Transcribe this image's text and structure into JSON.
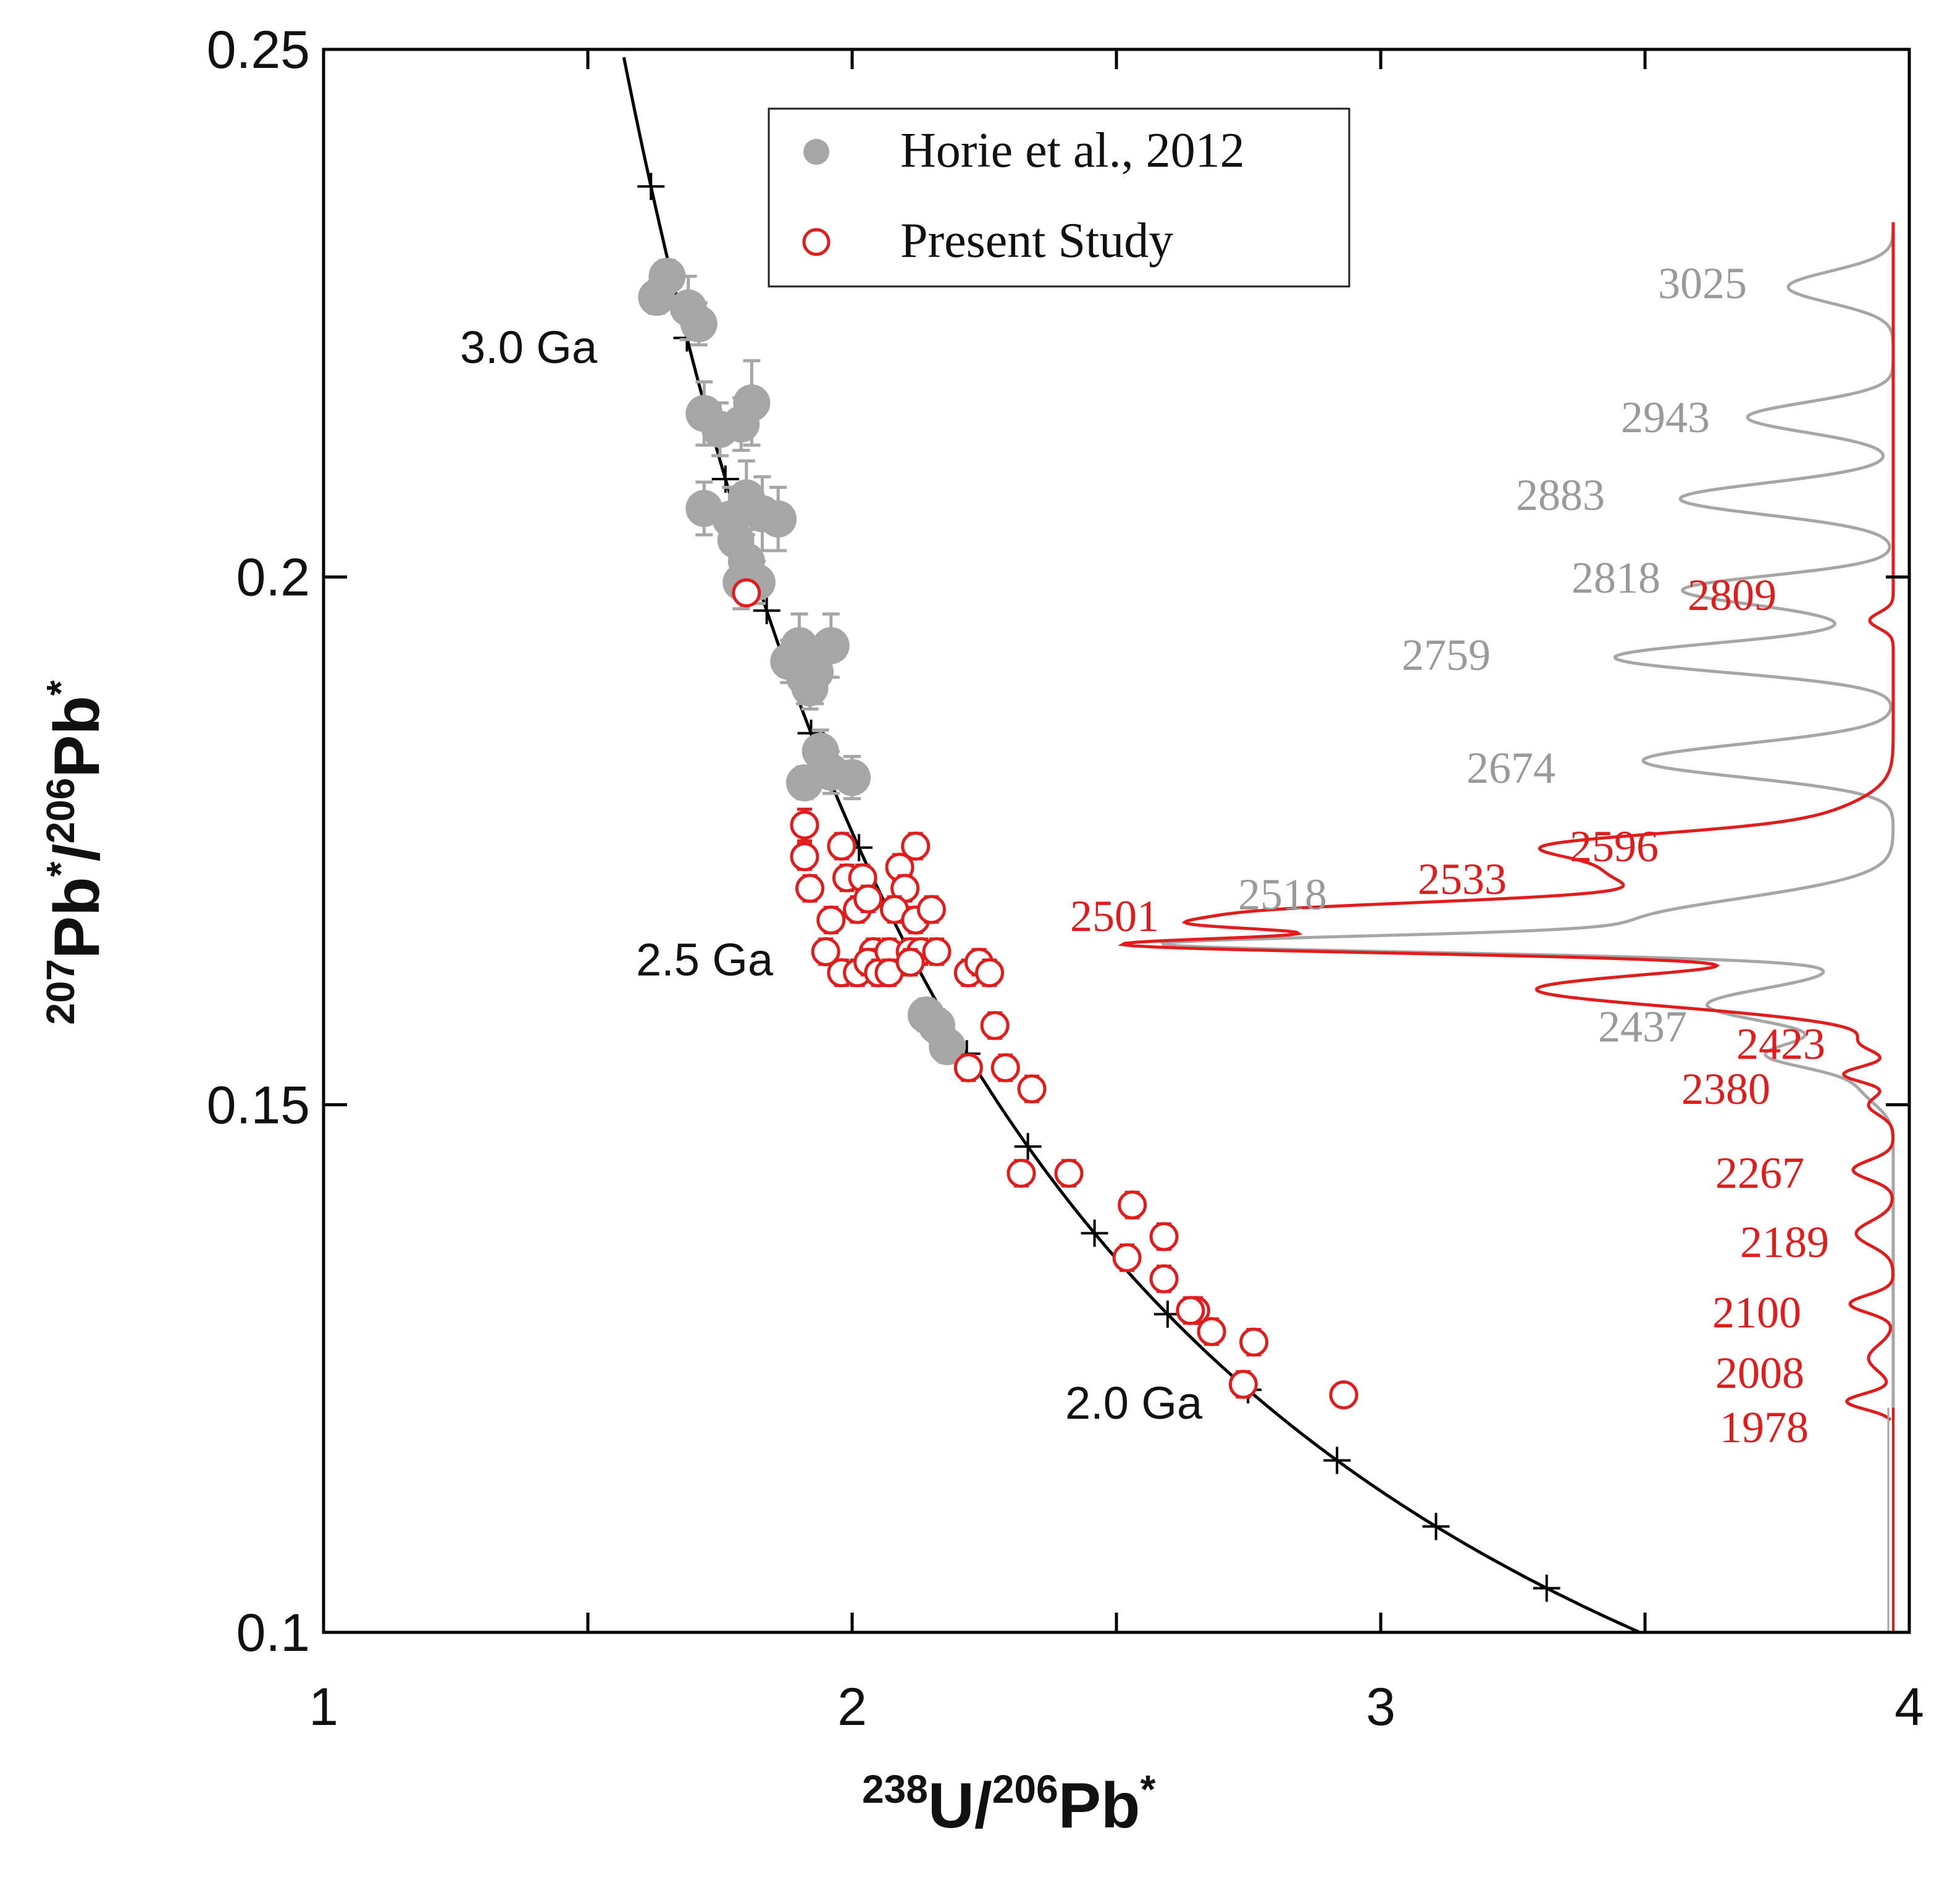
{
  "chart_data": {
    "type": "scatter",
    "title": "",
    "x_axis": {
      "label_parts": {
        "sup1": "238",
        "base1": "U/",
        "sup2": "206",
        "base2": "Pb",
        "sup3": "*"
      },
      "range": [
        1,
        4
      ],
      "ticks": [
        1,
        2,
        3,
        4
      ],
      "tick_labels": [
        "1",
        "2",
        "3",
        "4"
      ]
    },
    "y_axis": {
      "label_parts": {
        "sup1": "207",
        "base1": "Pb",
        "sup2": "*",
        "base2": "/",
        "sup3": "206",
        "base3": "Pb",
        "sup4": "*"
      },
      "range": [
        0.1,
        0.25
      ],
      "ticks": [
        0.1,
        0.15,
        0.2,
        0.25
      ],
      "tick_labels": [
        "0.1",
        "0.15",
        "0.2",
        "0.25"
      ]
    },
    "legend": {
      "placement": "top-center",
      "entries": [
        {
          "label": "Horie et al., 2012",
          "marker": "filled-circle",
          "color": "#a6a6a6"
        },
        {
          "label": "Present Study",
          "marker": "open-circle",
          "color": "#e21b1b"
        }
      ]
    },
    "concordia": {
      "type": "line",
      "color": "#000000",
      "age_marks_Ma": [
        3200,
        3100,
        3000,
        2900,
        2800,
        2700,
        2600,
        2500,
        2400,
        2300,
        2200,
        2100,
        2000,
        1900,
        1800,
        1700,
        1600
      ],
      "age_labels": [
        {
          "text": "3.0 Ga",
          "age_Ma": 3000
        },
        {
          "text": "2.5 Ga",
          "age_Ma": 2500
        },
        {
          "text": "2.0 Ga",
          "age_Ma": 2000
        }
      ]
    },
    "series": [
      {
        "name": "Horie et al., 2012",
        "color": "#a6a6a6",
        "marker": "filled-circle",
        "points": [
          [
            1.65,
            0.2285,
            0.0015
          ],
          [
            1.63,
            0.2265,
            0.0015
          ],
          [
            1.69,
            0.2255,
            0.003
          ],
          [
            1.71,
            0.224,
            0.002
          ],
          [
            1.72,
            0.2155,
            0.003
          ],
          [
            1.75,
            0.214,
            0.0025
          ],
          [
            1.79,
            0.2145,
            0.0025
          ],
          [
            1.81,
            0.2165,
            0.004
          ],
          [
            1.72,
            0.2065,
            0.0025
          ],
          [
            1.77,
            0.2055,
            0.003
          ],
          [
            1.8,
            0.2075,
            0.0035
          ],
          [
            1.83,
            0.206,
            0.0035
          ],
          [
            1.78,
            0.2035,
            0.0035
          ],
          [
            1.8,
            0.2015,
            0.003
          ],
          [
            1.86,
            0.2055,
            0.003
          ],
          [
            1.79,
            0.1995,
            0.0025
          ],
          [
            1.82,
            0.1995,
            0.002
          ],
          [
            1.88,
            0.192,
            0.002
          ],
          [
            1.91,
            0.1905,
            0.0025
          ],
          [
            1.93,
            0.191,
            0.003
          ],
          [
            1.9,
            0.1935,
            0.003
          ],
          [
            1.96,
            0.1935,
            0.003
          ],
          [
            1.92,
            0.1895,
            0.002
          ],
          [
            1.94,
            0.1835,
            0.002
          ],
          [
            1.96,
            0.1815,
            0.002
          ],
          [
            1.91,
            0.1805,
            0.0015
          ],
          [
            2.0,
            0.181,
            0.002
          ],
          [
            2.14,
            0.1585,
            0.0015
          ],
          [
            2.16,
            0.1575,
            0.0015
          ],
          [
            2.18,
            0.1555,
            0.0015
          ]
        ]
      },
      {
        "name": "Present Study",
        "color": "#e21b1b",
        "marker": "open-circle",
        "points": [
          [
            1.8,
            0.1985,
            0.0008
          ],
          [
            1.91,
            0.1765,
            0.0015
          ],
          [
            1.91,
            0.1735,
            0.0012
          ],
          [
            1.92,
            0.1705,
            0.0012
          ],
          [
            1.96,
            0.1675,
            0.0012
          ],
          [
            1.98,
            0.1745,
            0.0012
          ],
          [
            1.99,
            0.1715,
            0.0012
          ],
          [
            2.01,
            0.1685,
            0.0012
          ],
          [
            2.02,
            0.1715,
            0.0012
          ],
          [
            2.03,
            0.1695,
            0.0012
          ],
          [
            2.04,
            0.1645,
            0.0012
          ],
          [
            1.95,
            0.1645,
            0.0012
          ],
          [
            1.98,
            0.1625,
            0.0012
          ],
          [
            2.01,
            0.1625,
            0.0012
          ],
          [
            2.03,
            0.1635,
            0.0012
          ],
          [
            2.05,
            0.1625,
            0.0012
          ],
          [
            2.07,
            0.1645,
            0.0012
          ],
          [
            2.09,
            0.1725,
            0.0012
          ],
          [
            2.1,
            0.1705,
            0.0012
          ],
          [
            2.12,
            0.1745,
            0.0012
          ],
          [
            2.08,
            0.1685,
            0.0012
          ],
          [
            2.12,
            0.1675,
            0.0012
          ],
          [
            2.15,
            0.1685,
            0.0012
          ],
          [
            2.11,
            0.1645,
            0.0012
          ],
          [
            2.13,
            0.1645,
            0.0012
          ],
          [
            2.16,
            0.1645,
            0.0012
          ],
          [
            2.07,
            0.1625,
            0.0012
          ],
          [
            2.11,
            0.1635,
            0.0012
          ],
          [
            2.22,
            0.1625,
            0.0012
          ],
          [
            2.24,
            0.1635,
            0.0012
          ],
          [
            2.26,
            0.1625,
            0.0012
          ],
          [
            2.27,
            0.1575,
            0.0012
          ],
          [
            2.22,
            0.1535,
            0.0012
          ],
          [
            2.29,
            0.1535,
            0.0012
          ],
          [
            2.34,
            0.1515,
            0.0012
          ],
          [
            2.32,
            0.1435,
            0.0012
          ],
          [
            2.41,
            0.1435,
            0.0012
          ],
          [
            2.53,
            0.1405,
            0.0012
          ],
          [
            2.59,
            0.1375,
            0.0012
          ],
          [
            2.52,
            0.1355,
            0.0012
          ],
          [
            2.59,
            0.1335,
            0.0012
          ],
          [
            2.65,
            0.1305,
            0.0012
          ],
          [
            2.64,
            0.1305,
            0.0012
          ],
          [
            2.68,
            0.1285,
            0.0012
          ],
          [
            2.76,
            0.1275,
            0.0012
          ],
          [
            2.74,
            0.1235,
            0.0012
          ],
          [
            2.93,
            0.1225,
            0.0008
          ]
        ]
      }
    ],
    "probability_density": [
      {
        "name": "Horie et al., 2012",
        "color": "#a6a6a6",
        "peak_labels": [
          "3025",
          "2943",
          "2883",
          "2818",
          "2759",
          "2674",
          "2518",
          "2437"
        ]
      },
      {
        "name": "Present Study",
        "color": "#e21b1b",
        "peak_labels": [
          "2809",
          "2596",
          "2533",
          "2501",
          "2423",
          "2380",
          "2267",
          "2189",
          "2100",
          "2008",
          "1978"
        ]
      }
    ]
  }
}
